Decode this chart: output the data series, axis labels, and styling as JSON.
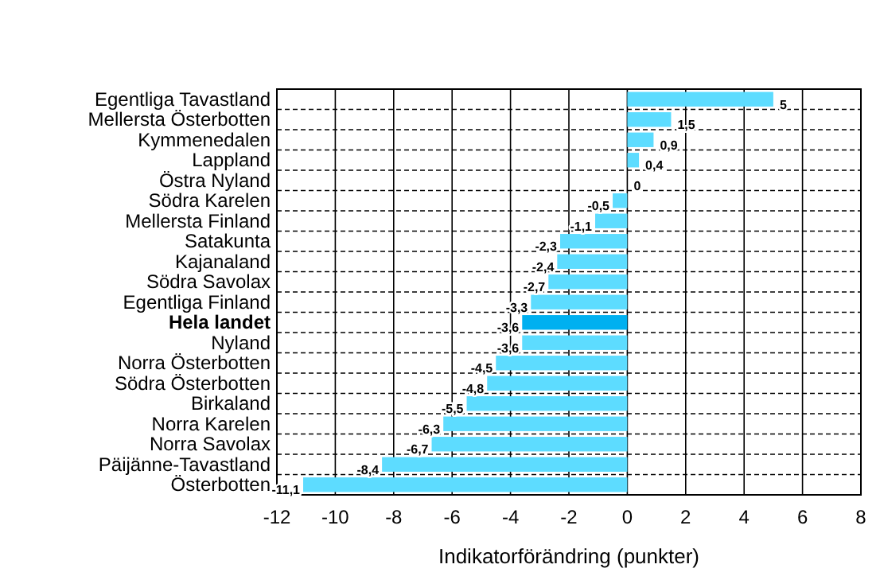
{
  "chart_data": {
    "type": "bar",
    "orientation": "horizontal",
    "xlabel": "Indikatorförändring (punkter)",
    "categories": [
      "Egentliga Tavastland",
      "Mellersta Österbotten",
      "Kymmenedalen",
      "Lappland",
      "Östra Nyland",
      "Södra Karelen",
      "Mellersta Finland",
      "Satakunta",
      "Kajanaland",
      "Södra Savolax",
      "Egentliga Finland",
      "Hela landet",
      "Nyland",
      "Norra Österbotten",
      "Södra Österbotten",
      "Birkaland",
      "Norra Karelen",
      "Norra Savolax",
      "Päijänne-Tavastland",
      "Österbotten"
    ],
    "values": [
      5,
      1.5,
      0.9,
      0.4,
      0,
      -0.5,
      -1.1,
      -2.3,
      -2.4,
      -2.7,
      -3.3,
      -3.6,
      -3.6,
      -4.5,
      -4.8,
      -5.5,
      -6.3,
      -6.7,
      -8.4,
      -11.1
    ],
    "value_labels": [
      "5",
      "1,5",
      "0,9",
      "0,4",
      "0",
      "-0,5",
      "-1,1",
      "-2,3",
      "-2,4",
      "-2,7",
      "-3,3",
      "-3,6",
      "-3,6",
      "-4,5",
      "-4,8",
      "-5,5",
      "-6,3",
      "-6,7",
      "-8,4",
      "-11,1"
    ],
    "colors": [
      "#5ddcff",
      "#5ddcff",
      "#5ddcff",
      "#5ddcff",
      "#5ddcff",
      "#5ddcff",
      "#5ddcff",
      "#5ddcff",
      "#5ddcff",
      "#5ddcff",
      "#5ddcff",
      "#00b0f0",
      "#5ddcff",
      "#5ddcff",
      "#5ddcff",
      "#5ddcff",
      "#5ddcff",
      "#5ddcff",
      "#5ddcff",
      "#5ddcff"
    ],
    "xlim": [
      -12,
      8
    ],
    "xticks": [
      -12,
      -10,
      -8,
      -6,
      -4,
      -2,
      0,
      2,
      4,
      6,
      8
    ],
    "grid": true
  }
}
